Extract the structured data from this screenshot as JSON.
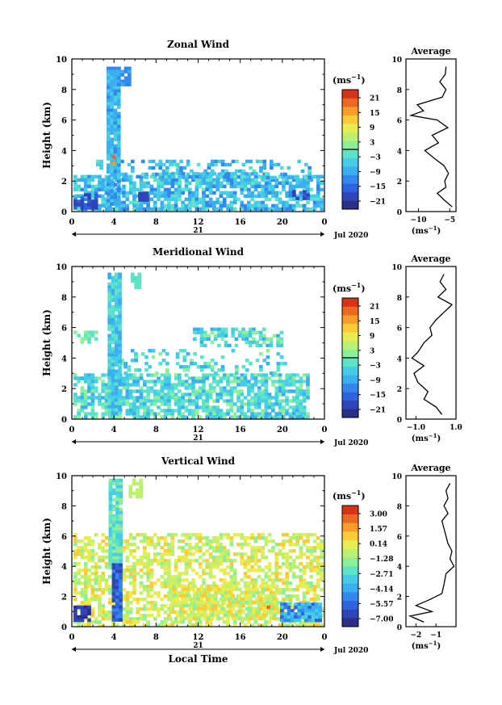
{
  "colorbar_colors": [
    "#2b2f86",
    "#2f44b8",
    "#2f62de",
    "#3388f0",
    "#3aaef0",
    "#45cde6",
    "#5fe3c8",
    "#8df098",
    "#bdf070",
    "#e8ec50",
    "#f8cc38",
    "#f89c2a",
    "#ec6a20",
    "#d63418"
  ],
  "chart_data": [
    {
      "type": "heatmap",
      "title": "Zonal Wind",
      "ylabel": "Height (km)",
      "xlabel": "",
      "x_ticks": [
        "0",
        "4",
        "8",
        "12",
        "16",
        "20",
        "0"
      ],
      "y_ticks": [
        "0",
        "2",
        "4",
        "6",
        "8",
        "10"
      ],
      "xlim": [
        0,
        24
      ],
      "ylim": [
        0,
        10
      ],
      "date_label": "21",
      "date_right": "Jul 2020",
      "colorbar_unit": "(ms",
      "colorbar_unit_exp": "−1",
      "colorbar_ticks": [
        "21",
        "15",
        "9",
        "3",
        "−3",
        "−9",
        "−15",
        "−21"
      ],
      "profile": {
        "title": "Average",
        "x_ticks": [
          "−10",
          "−5"
        ],
        "xlim": [
          -12,
          -4
        ],
        "xlabel": "(ms",
        "xlabel_exp": "−1",
        "heights": [
          0.3,
          0.8,
          1.2,
          1.6,
          2.0,
          2.5,
          3.0,
          3.5,
          4.0,
          4.5,
          5.0,
          5.5,
          6.0,
          6.3,
          6.6,
          7.0,
          7.5,
          8.0,
          8.5,
          9.0,
          9.5
        ],
        "values": [
          -4.6,
          -6.0,
          -7.0,
          -5.6,
          -5.8,
          -5.2,
          -5.9,
          -7.5,
          -9.0,
          -6.8,
          -7.8,
          -5.3,
          -7.0,
          -11.2,
          -9.2,
          -10.2,
          -6.2,
          -5.6,
          -6.6,
          -5.7,
          -5.6
        ]
      }
    },
    {
      "type": "heatmap",
      "title": "Meridional Wind",
      "ylabel": "Height (km)",
      "xlabel": "",
      "x_ticks": [
        "0",
        "4",
        "8",
        "12",
        "16",
        "20",
        "0"
      ],
      "y_ticks": [
        "0",
        "2",
        "4",
        "6",
        "8",
        "10"
      ],
      "xlim": [
        0,
        24
      ],
      "ylim": [
        0,
        10
      ],
      "date_label": "21",
      "date_right": "Jul 2020",
      "colorbar_unit": "(ms",
      "colorbar_unit_exp": "−1",
      "colorbar_ticks": [
        "21",
        "15",
        "9",
        "3",
        "−3",
        "−9",
        "−15",
        "−21"
      ],
      "profile": {
        "title": "Average",
        "x_ticks": [
          "−1.0",
          "1.0"
        ],
        "xlim": [
          -1.5,
          1.0
        ],
        "xlabel": "(ms",
        "xlabel_exp": "−1",
        "heights": [
          0.3,
          0.8,
          1.3,
          1.8,
          2.4,
          3.0,
          3.5,
          4.0,
          4.4,
          5.0,
          5.5,
          6.0,
          6.5,
          7.0,
          7.5,
          8.0,
          8.5,
          9.0,
          9.5
        ],
        "values": [
          0.3,
          0.0,
          -0.6,
          -0.4,
          -0.9,
          -1.1,
          -0.6,
          -1.2,
          -0.9,
          -0.6,
          -0.2,
          -0.3,
          0.0,
          0.4,
          0.8,
          0.1,
          0.5,
          0.2,
          0.4
        ]
      }
    },
    {
      "type": "heatmap",
      "title": "Vertical Wind",
      "ylabel": "Height (km)",
      "xlabel": "Local Time",
      "x_ticks": [
        "0",
        "4",
        "8",
        "12",
        "16",
        "20",
        "0"
      ],
      "y_ticks": [
        "0",
        "2",
        "4",
        "6",
        "8",
        "10"
      ],
      "xlim": [
        0,
        24
      ],
      "ylim": [
        0,
        10
      ],
      "date_label": "21",
      "date_right": "Jul 2020",
      "colorbar_unit": "(ms",
      "colorbar_unit_exp": "−1",
      "colorbar_ticks": [
        "3.00",
        "1.57",
        "0.14",
        "−1.28",
        "−2.71",
        "−4.14",
        "−5.57",
        "−7.00"
      ],
      "profile": {
        "title": "Average",
        "x_ticks": [
          "−2",
          "−1"
        ],
        "xlim": [
          -2.5,
          0.0
        ],
        "xlabel": "(ms",
        "xlabel_exp": "−1",
        "heights": [
          0.3,
          0.7,
          1.0,
          1.4,
          1.8,
          2.2,
          2.8,
          3.5,
          4.0,
          4.5,
          5.0,
          5.5,
          6.0,
          6.5,
          7.0,
          7.5,
          8.0,
          8.5,
          9.0,
          9.5
        ],
        "values": [
          -1.6,
          -2.3,
          -1.2,
          -2.0,
          -1.3,
          -0.7,
          -0.6,
          -0.5,
          -0.1,
          -0.3,
          -0.2,
          -0.4,
          -0.5,
          -0.6,
          -0.7,
          -0.4,
          -0.6,
          -0.4,
          -0.5,
          -0.3
        ]
      }
    }
  ]
}
